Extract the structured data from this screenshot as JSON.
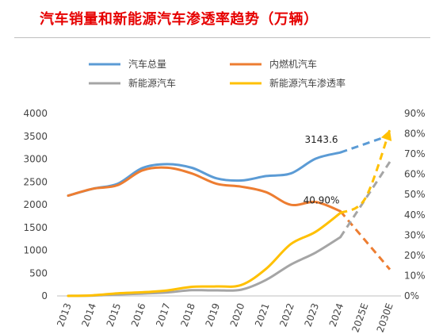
{
  "chart_data": {
    "type": "line",
    "title": "汽车销量和新能源汽车渗透率趋势（万辆）",
    "categories": [
      "2013",
      "2014",
      "2015",
      "2016",
      "2017",
      "2018",
      "2019",
      "2020",
      "2021",
      "2022",
      "2023",
      "2024",
      "2025E",
      "2030E"
    ],
    "y_left": {
      "ticks": [
        "0",
        "500",
        "1000",
        "1500",
        "2000",
        "2500",
        "3000",
        "3500",
        "4000"
      ],
      "range": [
        0,
        4000
      ]
    },
    "y_right": {
      "ticks": [
        "0%",
        "10%",
        "20%",
        "30%",
        "40%",
        "50%",
        "60%",
        "70%",
        "80%",
        "90%"
      ],
      "range": [
        0,
        90
      ]
    },
    "legend": {
      "placement": "top",
      "entries": [
        "汽车总量",
        "内燃机汽车",
        "新能源汽车",
        "新能源汽车渗透率"
      ]
    },
    "series": [
      {
        "name": "汽车总量",
        "axis": "left",
        "color": "#5B9BD5",
        "values": [
          2198,
          2349,
          2460,
          2803,
          2888,
          2808,
          2577,
          2531,
          2627,
          2686,
          3009,
          3143.6,
          null,
          3520
        ],
        "dashed_from_index": 11
      },
      {
        "name": "内燃机汽车",
        "axis": "left",
        "color": "#ED7D31",
        "values": [
          2198,
          2349,
          2427,
          2752,
          2811,
          2683,
          2457,
          2395,
          2275,
          1997,
          2060,
          1858,
          null,
          580
        ],
        "dashed_from_index": 11
      },
      {
        "name": "新能源汽车",
        "axis": "left",
        "color": "#A5A5A5",
        "values": [
          2,
          7,
          33,
          51,
          77,
          125,
          121,
          137,
          352,
          689,
          950,
          1287,
          null,
          2940
        ],
        "dashed_from_index": 11
      },
      {
        "name": "新能源汽车渗透率",
        "axis": "right",
        "color": "#FFC000",
        "values": [
          0,
          0.3,
          1.3,
          1.8,
          2.7,
          4.5,
          4.7,
          5.4,
          13.4,
          25.6,
          31.6,
          40.9,
          48,
          82
        ],
        "dashed_from_index": 11
      }
    ],
    "annotations": [
      {
        "text": "3143.6",
        "series": "汽车总量",
        "index": 11
      },
      {
        "text": "40.90%",
        "series": "新能源汽车渗透率",
        "index": 11
      }
    ],
    "grid": false
  },
  "colors": {
    "title": "#E60000",
    "axis": "#bfbfbf"
  }
}
